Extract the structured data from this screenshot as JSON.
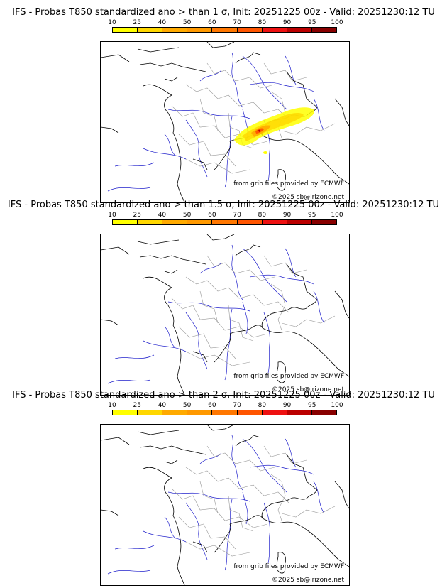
{
  "panels": [
    {
      "title": "IFS - Probas T850  standardized ano > than 1 σ, Init: 20251225 00z - Valid: 20251230:12 TU",
      "has_signal": true
    },
    {
      "title": "IFS - Probas T850  standardized ano > than 1.5 σ, Init: 20251225 00z - Valid: 20251230:12 TU",
      "has_signal": false
    },
    {
      "title": "IFS - Probas T850  standardized ano > than 2 σ, Init: 20251225 00z - Valid: 20251230:12 TU",
      "has_signal": false
    }
  ],
  "colorbar": {
    "labels": [
      "10",
      "25",
      "40",
      "50",
      "60",
      "70",
      "80",
      "90",
      "95",
      "100"
    ],
    "colors": [
      "#ffff00",
      "#ffd700",
      "#ffaa00",
      "#ff9900",
      "#ff7700",
      "#ff5500",
      "#ee1111",
      "#bb0000",
      "#880000",
      "#550000"
    ]
  },
  "credits": {
    "source": "from grib files provided by ECMWF",
    "copyright": "©2025 sb@irizone.net"
  },
  "map_colors": {
    "coast": "#000000",
    "borders": "#999999",
    "rivers": "#2222cc"
  }
}
